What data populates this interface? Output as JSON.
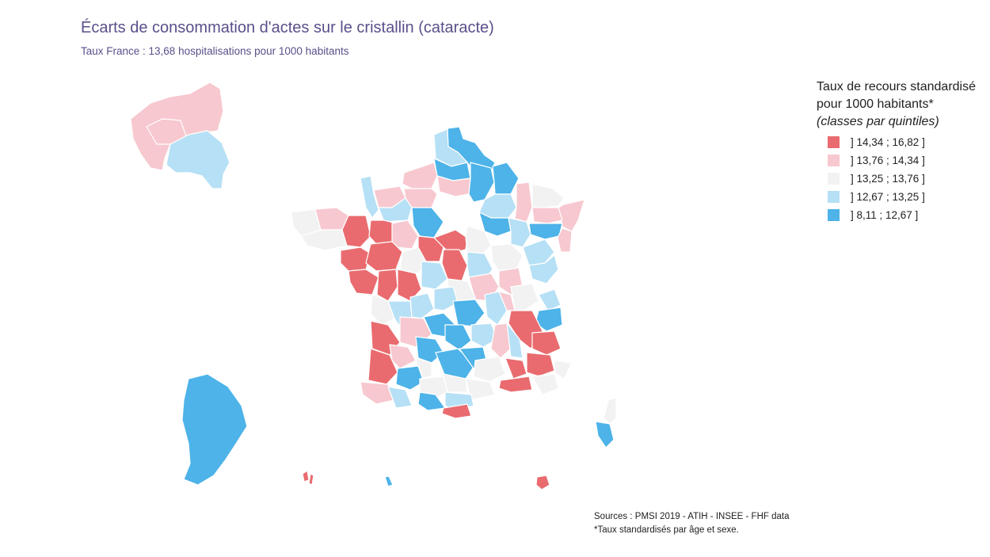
{
  "title": "Écarts de consommation d'actes sur le cristallin (cataracte)",
  "subtitle": "Taux France : 13,68 hospitalisations pour 1000 habitants",
  "legend": {
    "title_line1": "Taux de recours standardisé",
    "title_line2": "pour 1000 habitants*",
    "title_line3": "(classes par quintiles)",
    "classes": [
      {
        "label": "] 14,34 ; 16,82 ]",
        "color": "#e96b6f"
      },
      {
        "label": "] 13,76 ; 14,34 ]",
        "color": "#f7c8cf"
      },
      {
        "label": "] 13,25 ; 13,76 ]",
        "color": "#f2f2f2"
      },
      {
        "label": "] 12,67 ; 13,25 ]",
        "color": "#b6e0f5"
      },
      {
        "label": "] 8,11 ; 12,67 ]",
        "color": "#4db3e8"
      }
    ]
  },
  "sources": {
    "line1": "Sources : PMSI 2019 - ATIH - INSEE - FHF data",
    "line2": "*Taux standardisés par âge et sexe."
  },
  "map_regions": {
    "idf_inset": "Île-de-France inset",
    "mainland": "France métropolitaine",
    "corsica": "Corse",
    "guyane": "Guyane",
    "guadeloupe": "Guadeloupe",
    "martinique": "Martinique",
    "reunion": "La Réunion"
  }
}
